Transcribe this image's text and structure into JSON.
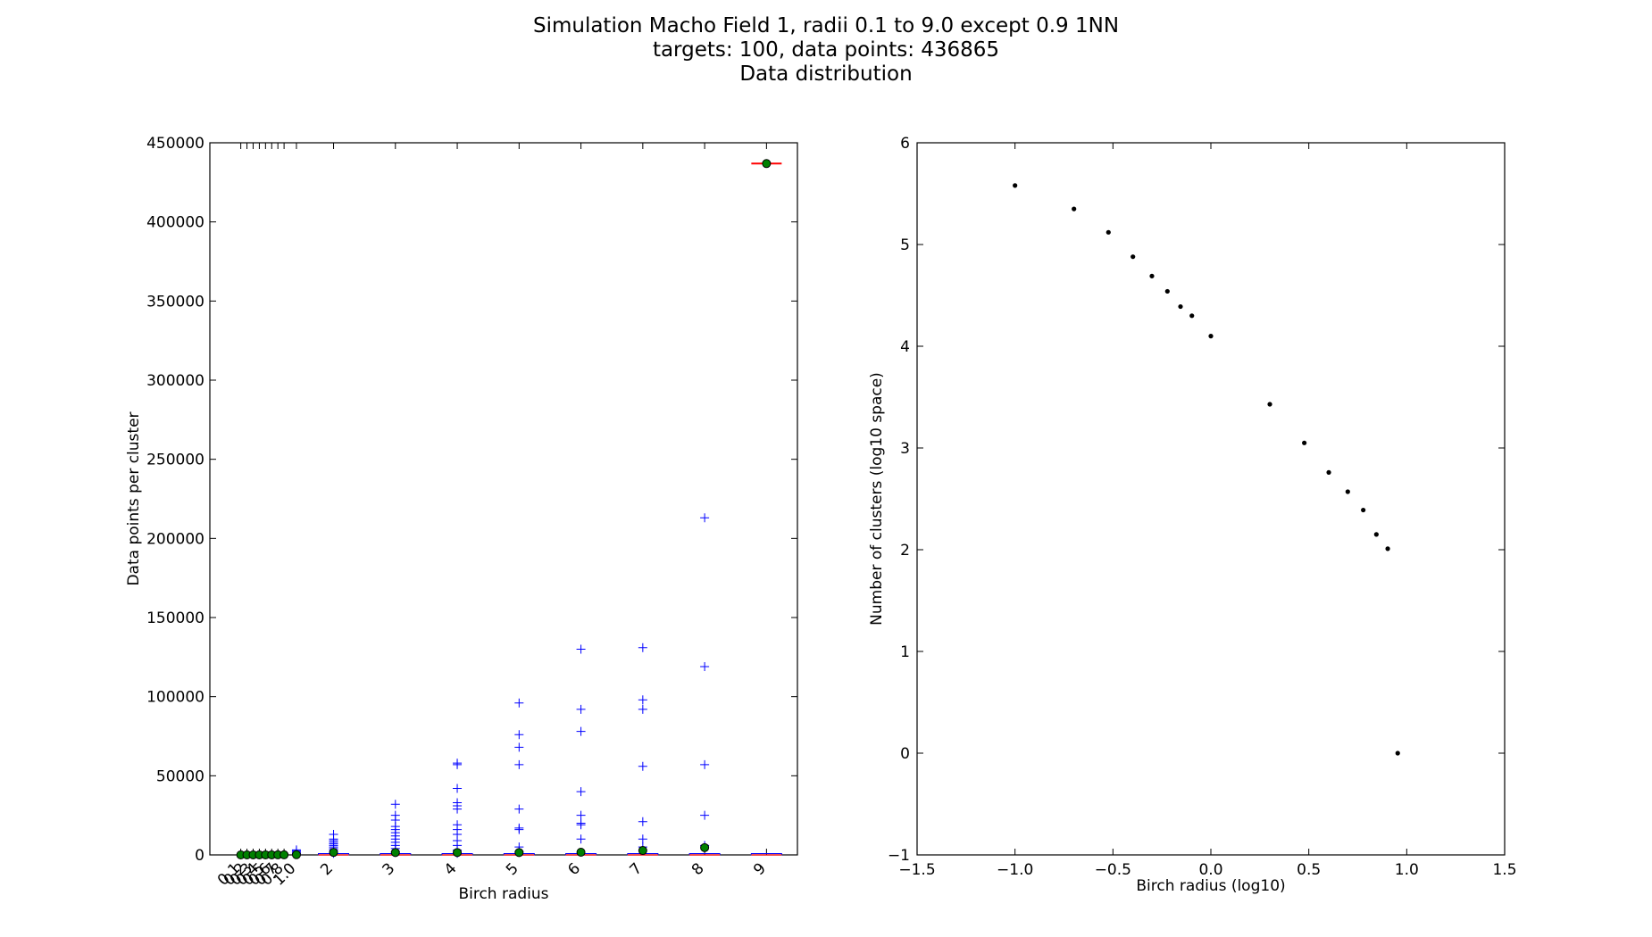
{
  "title_lines": [
    "Simulation Macho Field 1, radii 0.1 to 9.0 except 0.9 1NN",
    "targets: 100,   data points: 436865",
    "Data distribution"
  ],
  "chart_data": [
    {
      "type": "box",
      "xlabel": "Birch radius",
      "ylabel": "Data points per cluster",
      "ylim": [
        0,
        450000
      ],
      "yticks": [
        0,
        50000,
        100000,
        150000,
        200000,
        250000,
        300000,
        350000,
        400000,
        450000
      ],
      "ytick_labels": [
        "0",
        "50000",
        "100000",
        "150000",
        "200000",
        "250000",
        "300000",
        "350000",
        "400000",
        "450000"
      ],
      "xlim": [
        0,
        9.5
      ],
      "categories": [
        "0.1",
        "0.2",
        "0.3",
        "0.4",
        "0.5",
        "0.6",
        "0.7",
        "0.8",
        "1.0",
        "2",
        "3",
        "4",
        "5",
        "6",
        "7",
        "8",
        "9"
      ],
      "positions": [
        0.5,
        0.6,
        0.7,
        0.8,
        0.9,
        1.0,
        1.1,
        1.2,
        1.4,
        2,
        3,
        4,
        5,
        6,
        7,
        8,
        9
      ],
      "means": [
        3,
        5,
        9,
        13,
        19,
        27,
        38,
        53,
        108,
        1600,
        1500,
        1500,
        1500,
        1700,
        2800,
        4600,
        436865
      ],
      "outliers": [
        [],
        [],
        [],
        [],
        [],
        [],
        [],
        [],
        [
          800,
          1200,
          1800,
          2500,
          3200
        ],
        [
          1000,
          2000,
          3000,
          4000,
          5000,
          6000,
          7000,
          8000,
          9000,
          10000,
          13000
        ],
        [
          2000,
          4000,
          6000,
          8000,
          10000,
          12000,
          14000,
          16000,
          18000,
          22000,
          25000,
          32000
        ],
        [
          1000,
          3000,
          6000,
          9000,
          13000,
          16000,
          19000,
          29000,
          31000,
          33000,
          42000,
          57000,
          58000
        ],
        [
          2000,
          5000,
          16000,
          17000,
          29000,
          57000,
          68000,
          76000,
          96000
        ],
        [
          10000,
          19000,
          20000,
          25000,
          40000,
          78000,
          92000,
          130000
        ],
        [
          5000,
          10000,
          21000,
          56000,
          92000,
          98000,
          131000
        ],
        [
          6000,
          25000,
          57000,
          119000,
          213000
        ],
        []
      ],
      "mean_color": "#008000",
      "outlier_color": "#0000ff",
      "median_color": "#ff0000"
    },
    {
      "type": "scatter",
      "xlabel": "Birch radius (log10)",
      "ylabel": "Number of clusters (log10 space)",
      "xlim": [
        -1.5,
        1.5
      ],
      "ylim": [
        -1,
        6
      ],
      "xticks": [
        -1.5,
        -1.0,
        -0.5,
        0.0,
        0.5,
        1.0,
        1.5
      ],
      "xtick_labels": [
        "−1.5",
        "−1.0",
        "−0.5",
        "0.0",
        "0.5",
        "1.0",
        "1.5"
      ],
      "yticks": [
        -1,
        0,
        1,
        2,
        3,
        4,
        5,
        6
      ],
      "ytick_labels": [
        "−1",
        "0",
        "1",
        "2",
        "3",
        "4",
        "5",
        "6"
      ],
      "x": [
        -1.0,
        -0.699,
        -0.523,
        -0.398,
        -0.301,
        -0.222,
        -0.155,
        -0.097,
        0.0,
        0.301,
        0.477,
        0.602,
        0.699,
        0.778,
        0.845,
        0.903,
        0.954
      ],
      "y": [
        5.58,
        5.35,
        5.12,
        4.88,
        4.69,
        4.54,
        4.39,
        4.3,
        4.1,
        3.43,
        3.05,
        2.76,
        2.57,
        2.39,
        2.15,
        2.01,
        0.0
      ],
      "marker_color": "#000000"
    }
  ]
}
